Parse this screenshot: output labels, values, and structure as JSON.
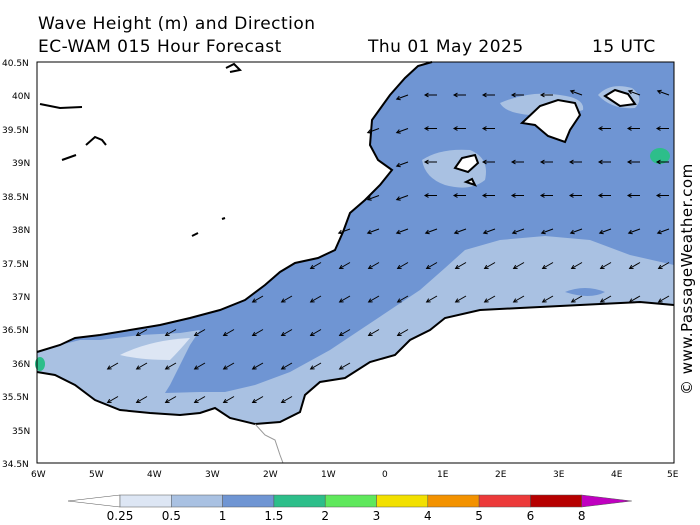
{
  "header": {
    "title": "Wave Height (m) and Direction",
    "model": "EC-WAM 015 Hour Forecast",
    "date": "Thu 01 May 2025",
    "time": "15 UTC"
  },
  "credit": "© www.PassageWeather.com",
  "map": {
    "lat_labels": [
      "40.5N",
      "40N",
      "39.5N",
      "39N",
      "38.5N",
      "38N",
      "37.5N",
      "37N",
      "36.5N",
      "36N",
      "35.5N",
      "35N",
      "34.5N"
    ],
    "lon_labels": [
      "6W",
      "5W",
      "4W",
      "3W",
      "2W",
      "1W",
      "0",
      "1E",
      "2E",
      "3E",
      "4E",
      "5E"
    ],
    "arrow_direction": "toward west-southwest"
  },
  "legend": {
    "ticks": [
      "0.25",
      "0.5",
      "1",
      "1.5",
      "2",
      "3",
      "4",
      "5",
      "6",
      "8"
    ],
    "colors": [
      "#ffffff",
      "#dde6f4",
      "#a9c1e2",
      "#6f95d3",
      "#2dbe8a",
      "#5fe85c",
      "#f2e000",
      "#f39200",
      "#ec3a3a",
      "#b60000",
      "#c000c0"
    ]
  },
  "chart_data": {
    "type": "heatmap",
    "title": "Wave Height (m) and Direction",
    "subtitle": "EC-WAM 015 Hour Forecast",
    "x_range": [
      "6W",
      "5E"
    ],
    "y_range": [
      "34.5N",
      "40.5N"
    ],
    "levels_m": [
      0.25,
      0.5,
      1,
      1.5,
      2,
      3,
      4,
      5,
      6,
      8
    ],
    "dominant_band_m": [
      1,
      1.5
    ]
  }
}
